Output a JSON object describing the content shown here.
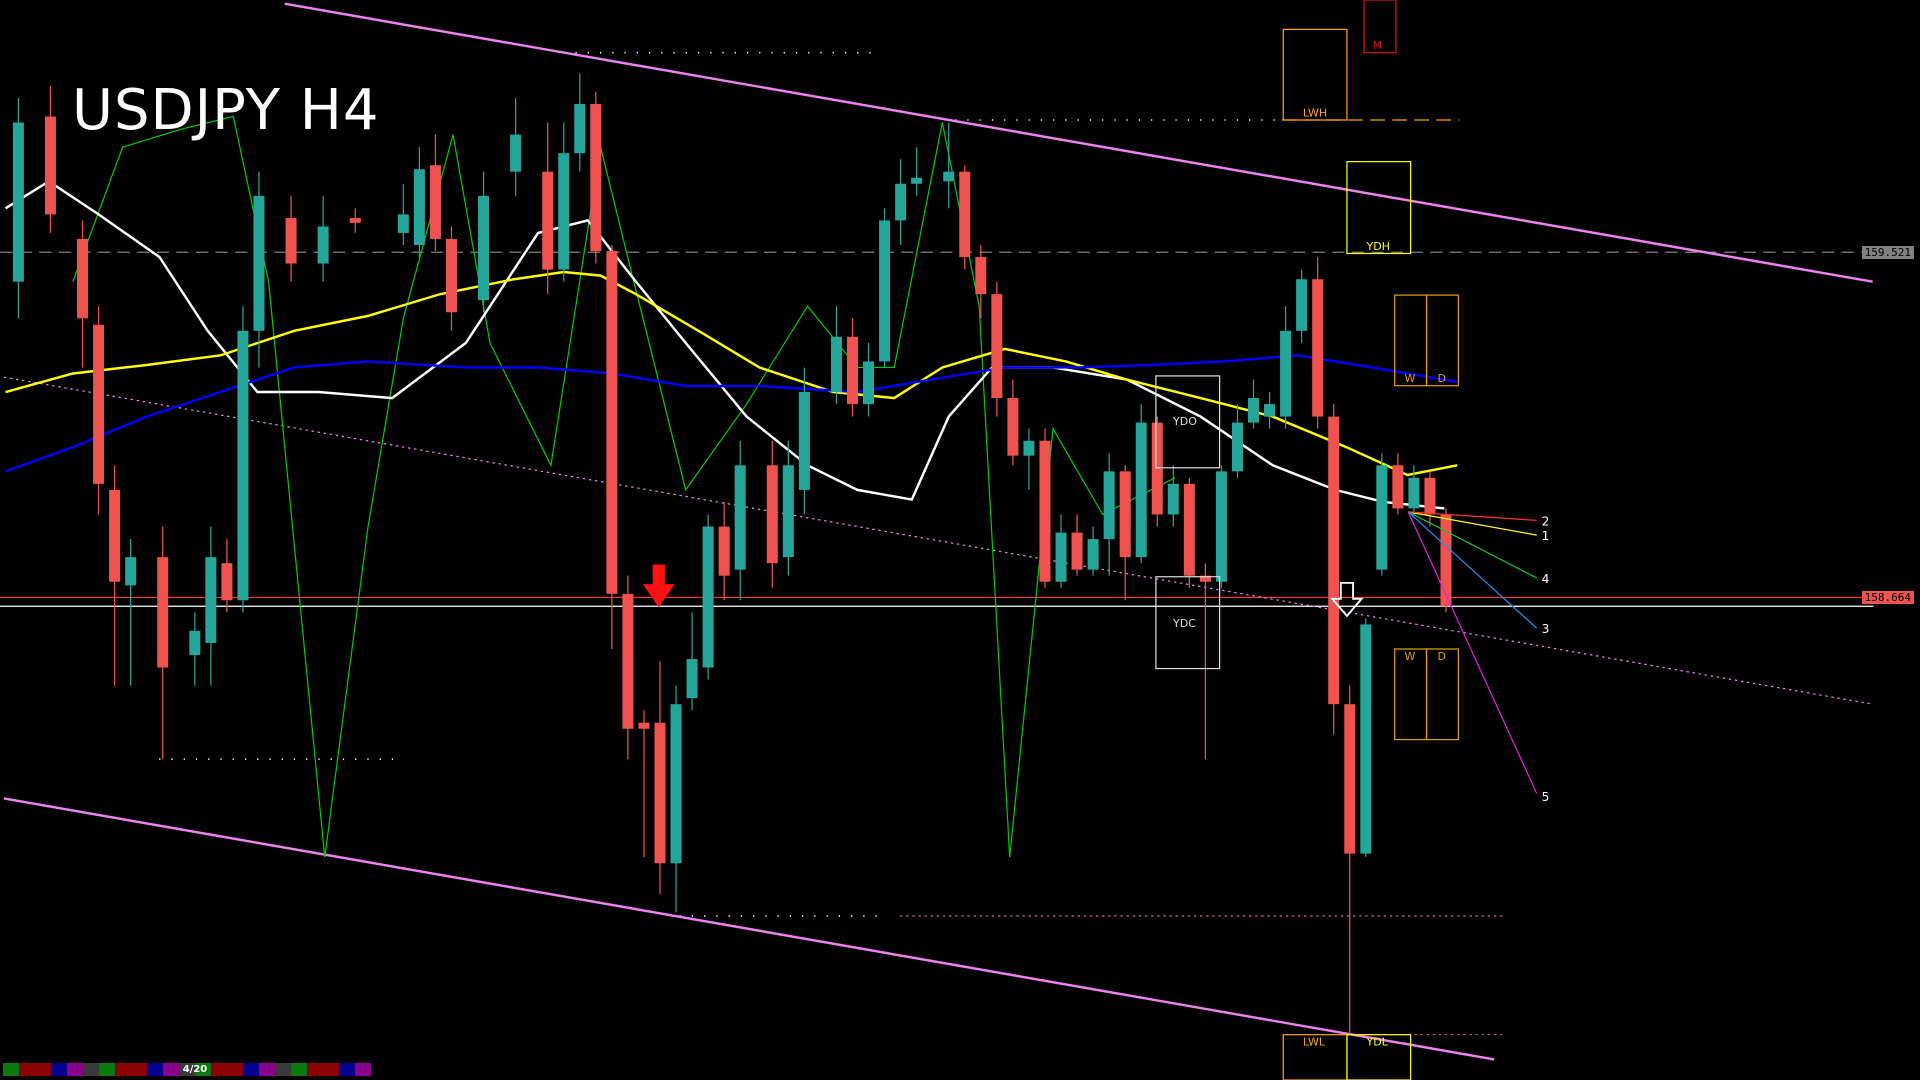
{
  "title": "USDJPY H4",
  "page_indicator": "4/20",
  "strip_colors": [
    "#0a7a0a",
    "#8b0000",
    "#8b0000",
    "#000090",
    "#8a008a",
    "#3a3a3a",
    "#0a7a0a",
    "#8b0000",
    "#8b0000",
    "#000090",
    "#8a008a",
    "PAGE",
    "#8b0000",
    "#8b0000",
    "#000090",
    "#8a008a",
    "#3a3a3a",
    "#0a7a0a",
    "#8b0000",
    "#8b0000",
    "#000090",
    "#8a008a"
  ],
  "colors": {
    "up": "#26a69a",
    "down": "#ef5350",
    "background": "#000000",
    "channel": "#ee82ee",
    "ma_fast": "#ffffff",
    "ma_mid": "#ffff00",
    "ma_slow": "#0000ff",
    "oscillator": "#00cc00"
  },
  "price_labels": {
    "upper": "159.521",
    "current": "158.664"
  },
  "boxes": {
    "lwh": "LWH",
    "m": "M",
    "ydh": "YDH",
    "w": "W",
    "d": "D",
    "ydo": "YDO",
    "ydc": "YDC",
    "lwl": "LWL",
    "ydl": "YDL",
    "w2": "W",
    "d2": "D"
  },
  "projection_labels": [
    "1",
    "2",
    "3",
    "4",
    "5"
  ],
  "chart_data": {
    "type": "candlestick",
    "symbol": "USDJPY",
    "timeframe": "H4",
    "candle_fields": [
      "bar",
      "open",
      "high",
      "low",
      "close"
    ],
    "candles": [
      [
        0,
        159.448,
        159.904,
        159.357,
        159.843
      ],
      [
        2,
        159.858,
        159.934,
        159.569,
        159.615
      ],
      [
        4,
        159.554,
        159.6,
        159.235,
        159.357
      ],
      [
        5,
        159.341,
        159.387,
        158.87,
        158.946
      ],
      [
        6,
        158.931,
        158.992,
        158.445,
        158.703
      ],
      [
        7,
        158.694,
        158.809,
        158.445,
        158.764
      ],
      [
        9,
        158.764,
        158.84,
        158.262,
        158.49
      ],
      [
        11,
        158.521,
        158.627,
        158.445,
        158.581
      ],
      [
        12,
        158.551,
        158.84,
        158.445,
        158.764
      ],
      [
        13,
        158.749,
        158.809,
        158.627,
        158.657
      ],
      [
        14,
        158.657,
        159.387,
        158.627,
        159.326
      ],
      [
        15,
        159.326,
        159.721,
        159.235,
        159.661
      ],
      [
        17,
        159.606,
        159.661,
        159.448,
        159.493
      ],
      [
        19,
        159.493,
        159.661,
        159.448,
        159.585
      ],
      [
        21,
        159.606,
        159.63,
        159.569,
        159.594
      ],
      [
        24,
        159.569,
        159.691,
        159.539,
        159.615
      ],
      [
        25,
        159.539,
        159.782,
        159.509,
        159.727
      ],
      [
        26,
        159.737,
        159.813,
        159.524,
        159.554
      ],
      [
        27,
        159.554,
        159.585,
        159.326,
        159.372
      ],
      [
        29,
        159.402,
        159.721,
        159.372,
        159.661
      ],
      [
        31,
        159.721,
        159.904,
        159.661,
        159.813
      ],
      [
        33,
        159.721,
        159.843,
        159.417,
        159.478
      ],
      [
        34,
        159.478,
        159.843,
        159.448,
        159.767
      ],
      [
        35,
        159.767,
        159.965,
        159.721,
        159.889
      ],
      [
        36,
        159.889,
        159.919,
        159.493,
        159.524
      ],
      [
        37,
        159.524,
        159.539,
        158.536,
        158.673
      ],
      [
        38,
        158.673,
        158.718,
        158.262,
        158.338
      ],
      [
        39,
        158.353,
        158.384,
        158.019,
        158.338
      ],
      [
        40,
        158.353,
        158.505,
        157.928,
        158.004
      ],
      [
        41,
        158.004,
        158.445,
        157.882,
        158.399
      ],
      [
        42,
        158.414,
        158.627,
        158.384,
        158.511
      ],
      [
        43,
        158.49,
        158.87,
        158.46,
        158.84
      ],
      [
        44,
        158.84,
        158.901,
        158.657,
        158.718
      ],
      [
        45,
        158.733,
        159.053,
        158.657,
        158.992
      ],
      [
        47,
        158.992,
        159.053,
        158.688,
        158.749
      ],
      [
        48,
        158.764,
        159.053,
        158.718,
        158.992
      ],
      [
        49,
        158.931,
        159.235,
        158.87,
        159.174
      ],
      [
        51,
        159.174,
        159.387,
        159.144,
        159.311
      ],
      [
        52,
        159.311,
        159.357,
        159.113,
        159.144
      ],
      [
        53,
        159.144,
        159.296,
        159.113,
        159.25
      ],
      [
        54,
        159.25,
        159.63,
        159.235,
        159.6
      ],
      [
        55,
        159.6,
        159.752,
        159.539,
        159.691
      ],
      [
        56,
        159.691,
        159.782,
        159.661,
        159.706
      ],
      [
        58,
        159.697,
        159.843,
        159.63,
        159.721
      ],
      [
        59,
        159.721,
        159.737,
        159.478,
        159.509
      ],
      [
        60,
        159.509,
        159.539,
        159.357,
        159.417
      ],
      [
        61,
        159.417,
        159.448,
        159.113,
        159.159
      ],
      [
        62,
        159.159,
        159.205,
        158.992,
        159.016
      ],
      [
        63,
        159.016,
        159.083,
        158.931,
        159.053
      ],
      [
        64,
        159.053,
        159.083,
        158.688,
        158.703
      ],
      [
        65,
        158.703,
        158.87,
        158.688,
        158.825
      ],
      [
        66,
        158.825,
        158.87,
        158.718,
        158.733
      ],
      [
        67,
        158.733,
        158.84,
        158.718,
        158.809
      ],
      [
        68,
        158.809,
        159.022,
        158.718,
        158.977
      ],
      [
        69,
        158.977,
        158.992,
        158.657,
        158.764
      ],
      [
        70,
        158.764,
        159.144,
        158.749,
        159.098
      ],
      [
        71,
        159.098,
        159.113,
        158.84,
        158.87
      ],
      [
        72,
        158.87,
        158.992,
        158.84,
        158.946
      ],
      [
        73,
        158.946,
        158.961,
        158.688,
        158.718
      ],
      [
        74,
        158.718,
        158.749,
        158.262,
        158.703
      ],
      [
        75,
        158.703,
        158.992,
        158.688,
        158.977
      ],
      [
        76,
        158.977,
        159.144,
        158.961,
        159.098
      ],
      [
        77,
        159.098,
        159.205,
        159.083,
        159.159
      ],
      [
        78,
        159.113,
        159.174,
        159.083,
        159.144
      ],
      [
        79,
        159.113,
        159.387,
        159.083,
        159.326
      ],
      [
        80,
        159.326,
        159.478,
        159.296,
        159.454
      ],
      [
        81,
        159.454,
        159.509,
        159.083,
        159.113
      ],
      [
        82,
        159.113,
        159.144,
        158.323,
        158.399
      ],
      [
        83,
        158.399,
        158.445,
        157.578,
        158.028
      ],
      [
        84,
        158.028,
        158.612,
        158.019,
        158.597
      ],
      [
        85,
        158.733,
        159.022,
        158.718,
        158.992
      ],
      [
        86,
        158.992,
        159.022,
        158.87,
        158.885
      ],
      [
        87,
        158.885,
        158.992,
        158.87,
        158.961
      ],
      [
        88,
        158.961,
        158.977,
        158.84,
        158.87
      ],
      [
        89,
        158.87,
        158.885,
        158.627,
        158.642
      ]
    ],
    "moving_averages": [
      {
        "color": "#ffffff",
        "points": [
          [
            -0.8,
            159.63
          ],
          [
            1.9,
            159.697
          ],
          [
            5,
            159.615
          ],
          [
            8.8,
            159.509
          ],
          [
            11.8,
            159.326
          ],
          [
            14.9,
            159.174
          ],
          [
            18.7,
            159.174
          ],
          [
            23.3,
            159.159
          ],
          [
            27.9,
            159.296
          ],
          [
            32.4,
            159.569
          ],
          [
            35.5,
            159.6
          ],
          [
            38.5,
            159.448
          ],
          [
            41.6,
            159.296
          ],
          [
            45.4,
            159.113
          ],
          [
            49.2,
            158.992
          ],
          [
            52.3,
            158.931
          ],
          [
            55.7,
            158.907
          ],
          [
            58,
            159.113
          ],
          [
            60.7,
            159.235
          ],
          [
            64.5,
            159.235
          ],
          [
            69.1,
            159.205
          ],
          [
            73.7,
            159.113
          ],
          [
            78.2,
            158.992
          ],
          [
            82.1,
            158.931
          ],
          [
            85.1,
            158.901
          ],
          [
            88.9,
            158.885
          ]
        ]
      },
      {
        "color": "#ffff00",
        "points": [
          [
            -0.8,
            159.174
          ],
          [
            3.4,
            159.22
          ],
          [
            8,
            159.241
          ],
          [
            12.6,
            159.265
          ],
          [
            17.2,
            159.326
          ],
          [
            21.8,
            159.363
          ],
          [
            26.3,
            159.417
          ],
          [
            30.9,
            159.454
          ],
          [
            34,
            159.472
          ],
          [
            36.3,
            159.463
          ],
          [
            38.5,
            159.417
          ],
          [
            42.4,
            159.326
          ],
          [
            46.2,
            159.235
          ],
          [
            50.8,
            159.174
          ],
          [
            54.6,
            159.159
          ],
          [
            57.6,
            159.235
          ],
          [
            61.5,
            159.281
          ],
          [
            65.3,
            159.25
          ],
          [
            69.1,
            159.205
          ],
          [
            73.7,
            159.159
          ],
          [
            78.2,
            159.113
          ],
          [
            82.8,
            159.037
          ],
          [
            86.6,
            158.968
          ],
          [
            89.7,
            158.992
          ]
        ]
      },
      {
        "color": "#0000ff",
        "points": [
          [
            -0.8,
            158.977
          ],
          [
            3.4,
            159.037
          ],
          [
            8,
            159.113
          ],
          [
            12.6,
            159.174
          ],
          [
            17.2,
            159.235
          ],
          [
            21.8,
            159.25
          ],
          [
            27.9,
            159.235
          ],
          [
            32.4,
            159.235
          ],
          [
            37,
            159.22
          ],
          [
            41.6,
            159.189
          ],
          [
            46.2,
            159.189
          ],
          [
            52.3,
            159.174
          ],
          [
            56.9,
            159.205
          ],
          [
            61.5,
            159.235
          ],
          [
            66.1,
            159.235
          ],
          [
            70.6,
            159.241
          ],
          [
            75.2,
            159.25
          ],
          [
            79.8,
            159.265
          ],
          [
            84.4,
            159.235
          ],
          [
            89.7,
            159.199
          ]
        ]
      }
    ],
    "oscillator_line": [
      [
        3.4,
        159.448
      ],
      [
        6.5,
        159.782
      ],
      [
        10.3,
        159.828
      ],
      [
        13.4,
        159.858
      ],
      [
        15.6,
        159.448
      ],
      [
        19.1,
        158.019
      ],
      [
        21.8,
        158.84
      ],
      [
        24,
        159.357
      ],
      [
        27.1,
        159.813
      ],
      [
        29.4,
        159.296
      ],
      [
        33.2,
        158.992
      ],
      [
        36.3,
        159.782
      ],
      [
        37.8,
        159.539
      ],
      [
        41.6,
        158.931
      ],
      [
        45.4,
        159.144
      ],
      [
        49.2,
        159.387
      ],
      [
        52.3,
        159.235
      ],
      [
        54.6,
        159.235
      ],
      [
        57.6,
        159.843
      ],
      [
        59.9,
        159.387
      ],
      [
        61.8,
        158.019
      ],
      [
        64.5,
        159.083
      ],
      [
        67.6,
        158.87
      ],
      [
        72.1,
        158.961
      ]
    ],
    "trendlines": [
      {
        "kind": "channel-upper",
        "from": [
          16.6,
          160.138
        ],
        "to": [
          115.6,
          159.448
        ]
      },
      {
        "kind": "channel-lower",
        "from": [
          -0.9,
          158.165
        ],
        "to": [
          92,
          157.517
        ]
      },
      {
        "kind": "channel-mid-dotted",
        "from": [
          -0.9,
          159.211
        ],
        "to": [
          115.6,
          158.399
        ]
      }
    ],
    "horizontal_levels": [
      {
        "price": 159.521,
        "style": "dashed",
        "color": "#808080"
      },
      {
        "price": 158.664,
        "style": "solid",
        "color": "#ff3030"
      },
      {
        "price": 158.642,
        "style": "solid",
        "color": "#ffffff"
      }
    ],
    "signals": [
      {
        "type": "sell-arrow",
        "bar": 39,
        "color": "#ff0000"
      },
      {
        "type": "arrow-down-outline",
        "bar": 83,
        "color": "#ffffff"
      }
    ]
  }
}
